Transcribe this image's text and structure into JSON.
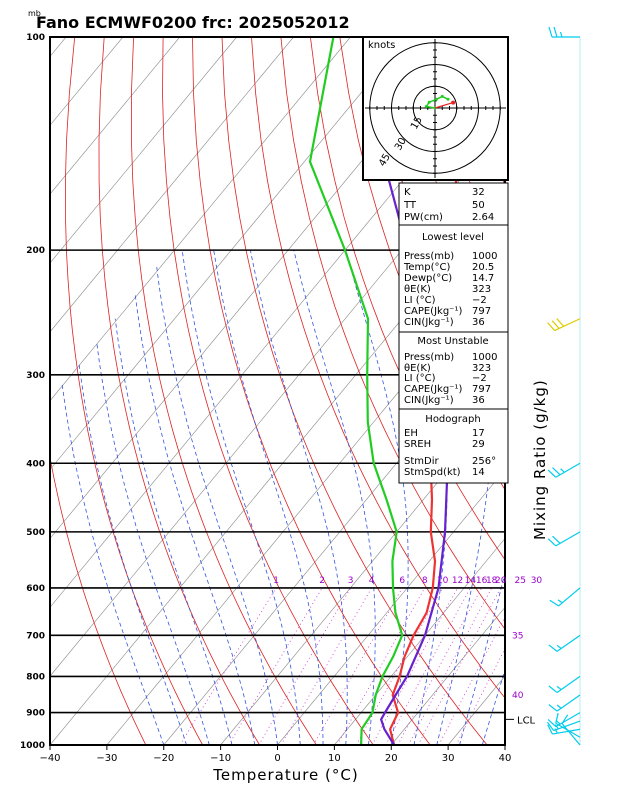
{
  "header": {
    "unit": "mb",
    "title": "Fano ECMWF0200 frc: 2025052012"
  },
  "chart_data": {
    "type": "line",
    "subtype": "skew-T log-P sounding",
    "xlabel": "Temperature (°C)",
    "ylabel_right": "Mixing Ratio (g/kg)",
    "x_ticks": [
      "−40",
      "−30",
      "−20",
      "−10",
      "0",
      "10",
      "20",
      "30",
      "40"
    ],
    "p_ticks": [
      "100",
      "200",
      "300",
      "400",
      "500",
      "600",
      "700",
      "800",
      "900",
      "1000"
    ],
    "xlim": [
      -40,
      40
    ],
    "plim": [
      1000,
      100
    ],
    "log_p": true,
    "series": [
      {
        "color": "#ee3333",
        "points": [
          {
            "p": 1000,
            "t": 20.5
          },
          {
            "p": 950,
            "t": 17.5
          },
          {
            "p": 900,
            "t": 16.5
          },
          {
            "p": 850,
            "t": 13.0
          },
          {
            "p": 800,
            "t": 11.5
          },
          {
            "p": 750,
            "t": 9.5
          },
          {
            "p": 700,
            "t": 8.0
          },
          {
            "p": 650,
            "t": 7.0
          },
          {
            "p": 600,
            "t": 4.5
          },
          {
            "p": 550,
            "t": 1.0
          },
          {
            "p": 500,
            "t": -4.0
          },
          {
            "p": 450,
            "t": -8.5
          },
          {
            "p": 400,
            "t": -14.0
          },
          {
            "p": 350,
            "t": -21.0
          },
          {
            "p": 300,
            "t": -28.0
          },
          {
            "p": 250,
            "t": -38.0
          },
          {
            "p": 200,
            "t": -45.0
          },
          {
            "p": 150,
            "t": -52.0
          },
          {
            "p": 110,
            "t": -57.0
          }
        ]
      },
      {
        "color": "#22cc22",
        "points": [
          {
            "p": 1000,
            "t": 14.7
          },
          {
            "p": 950,
            "t": 12.5
          },
          {
            "p": 900,
            "t": 12.0
          },
          {
            "p": 850,
            "t": 10.0
          },
          {
            "p": 800,
            "t": 8.5
          },
          {
            "p": 750,
            "t": 7.5
          },
          {
            "p": 700,
            "t": 6.0
          },
          {
            "p": 650,
            "t": 1.5
          },
          {
            "p": 600,
            "t": -2.5
          },
          {
            "p": 550,
            "t": -6.5
          },
          {
            "p": 500,
            "t": -10.0
          },
          {
            "p": 450,
            "t": -16.5
          },
          {
            "p": 400,
            "t": -24.0
          },
          {
            "p": 350,
            "t": -31.0
          },
          {
            "p": 300,
            "t": -38.0
          },
          {
            "p": 250,
            "t": -46.0
          },
          {
            "p": 200,
            "t": -60.0
          },
          {
            "p": 150,
            "t": -79.0
          },
          {
            "p": 100,
            "t": -93.0
          }
        ]
      },
      {
        "color": "#6622cc",
        "points": [
          {
            "p": 1000,
            "t": 20.5
          },
          {
            "p": 950,
            "t": 16.5
          },
          {
            "p": 920,
            "t": 14.5
          },
          {
            "p": 900,
            "t": 14.2
          },
          {
            "p": 850,
            "t": 13.5
          },
          {
            "p": 800,
            "t": 12.8
          },
          {
            "p": 700,
            "t": 10.0
          },
          {
            "p": 600,
            "t": 5.5
          },
          {
            "p": 500,
            "t": -1.5
          },
          {
            "p": 400,
            "t": -11.0
          },
          {
            "p": 300,
            "t": -26.0
          },
          {
            "p": 250,
            "t": -36.5
          },
          {
            "p": 200,
            "t": -49.0
          },
          {
            "p": 150,
            "t": -66.0
          },
          {
            "p": 110,
            "t": -83.0
          }
        ]
      }
    ],
    "mixing_ratio_labels": [
      "1",
      "2",
      "3",
      "4",
      "6",
      "8",
      "10",
      "12",
      "14",
      "16",
      "18",
      "20",
      "25",
      "30"
    ],
    "side_labels": [
      {
        "text": "35",
        "p": 700
      },
      {
        "text": "40",
        "p": 850
      }
    ],
    "lcl_label": "LCL",
    "lcl_p": 920,
    "hodograph": {
      "units_label": "knots",
      "ring_labels": [
        "15",
        "30",
        "45"
      ],
      "points": [
        [
          0,
          0
        ],
        [
          -3,
          0.5
        ],
        [
          -2,
          2
        ],
        [
          0.5,
          3
        ],
        [
          2.5,
          4
        ],
        [
          4.5,
          3
        ]
      ],
      "storm_motion": [
        5,
        1.5
      ]
    },
    "wind_barbs": [
      {
        "p": 1000,
        "dir": 320,
        "kt": 10
      },
      {
        "p": 975,
        "dir": 300,
        "kt": 10
      },
      {
        "p": 950,
        "dir": 260,
        "kt": 15
      },
      {
        "p": 925,
        "dir": 250,
        "kt": 15
      },
      {
        "p": 900,
        "dir": 240,
        "kt": 15
      },
      {
        "p": 850,
        "dir": 235,
        "kt": 15
      },
      {
        "p": 800,
        "dir": 235,
        "kt": 15
      },
      {
        "p": 700,
        "dir": 235,
        "kt": 15
      },
      {
        "p": 600,
        "dir": 230,
        "kt": 15
      },
      {
        "p": 500,
        "dir": 240,
        "kt": 20
      },
      {
        "p": 400,
        "dir": 240,
        "kt": 25
      },
      {
        "p": 250,
        "dir": 245,
        "kt": 30
      },
      {
        "p": 100,
        "dir": 270,
        "kt": 25
      }
    ]
  },
  "indices": {
    "top": [
      {
        "k": "K",
        "v": "32"
      },
      {
        "k": "TT",
        "v": "50"
      },
      {
        "k": "PW(cm)",
        "v": "2.64"
      }
    ],
    "lowest_title": "Lowest level",
    "lowest": [
      {
        "k": "Press(mb)",
        "v": "1000"
      },
      {
        "k": "Temp(°C)",
        "v": "20.5"
      },
      {
        "k": "Dewp(°C)",
        "v": "14.7"
      },
      {
        "k": "θE(K)",
        "v": "323"
      },
      {
        "k": "LI (°C)",
        "v": "−2"
      },
      {
        "k": "CAPE(Jkg⁻¹)",
        "v": "797"
      },
      {
        "k": "CIN(Jkg⁻¹)",
        "v": "36"
      }
    ],
    "mu_title": "Most Unstable",
    "mu": [
      {
        "k": "Press(mb)",
        "v": "1000"
      },
      {
        "k": "θE(K)",
        "v": "323"
      },
      {
        "k": "LI (°C)",
        "v": "−2"
      },
      {
        "k": "CAPE(Jkg⁻¹)",
        "v": "797"
      },
      {
        "k": "CIN(Jkg⁻¹)",
        "v": "36"
      }
    ],
    "hodo_title": "Hodograph",
    "hodo_a": [
      {
        "k": "EH",
        "v": "17"
      },
      {
        "k": "SREH",
        "v": "29"
      }
    ],
    "hodo_b": [
      {
        "k": "StmDir",
        "v": "256°"
      },
      {
        "k": "StmSpd(kt)",
        "v": "14"
      }
    ]
  },
  "colors": {
    "temperature": "#ee3333",
    "dewpoint": "#22cc22",
    "parcel": "#6622cc",
    "dry_adiabat": "#dd2222",
    "moist_adiabat": "#3355dd",
    "mixing_ratio": "#cc33cc",
    "isotherm": "#888888",
    "barb": "#00ccee",
    "barb_highlight": "#ddcc00"
  }
}
